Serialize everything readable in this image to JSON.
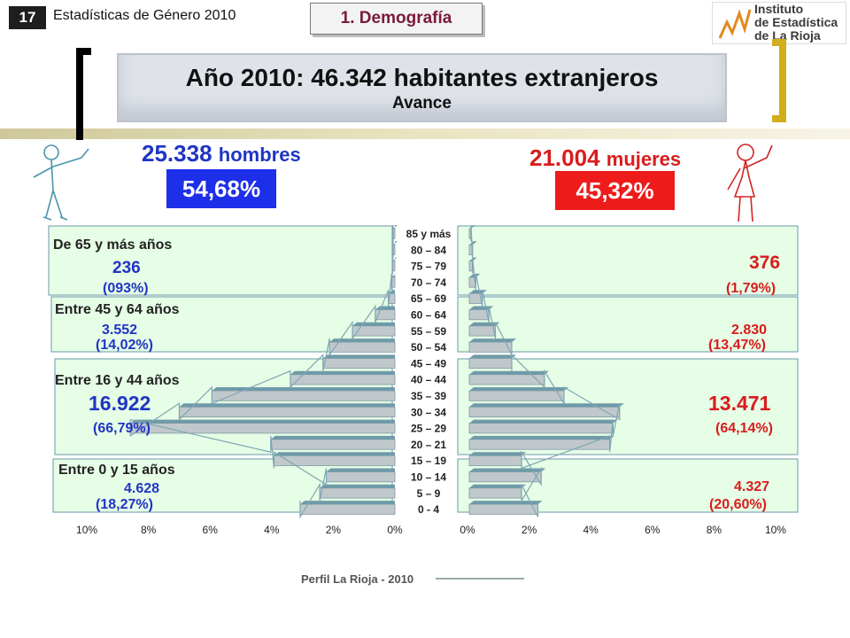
{
  "header": {
    "slide_number": "17",
    "slide_heading": "Estadísticas de Género 2010",
    "section": "1. Demografía",
    "logo_lines": [
      "Instituto",
      "de Estadística",
      "de La Rioja"
    ]
  },
  "title": {
    "main": "Año 2010: 46.342 habitantes extranjeros",
    "sub": "Avance"
  },
  "men": {
    "count": "25.338",
    "unit": "hombres",
    "pct": "54,68%"
  },
  "women": {
    "count": "21.004",
    "unit": "mujeres",
    "pct": "45,32%"
  },
  "groups": [
    {
      "label": "De 65 y más años",
      "men_value": "236",
      "men_pct": "(093%)",
      "women_value": "376",
      "women_pct": "(1,79%)"
    },
    {
      "label": "Entre 45 y 64 años",
      "men_value": "3.552",
      "men_pct": "(14,02%)",
      "women_value": "2.830",
      "women_pct": "(13,47%)"
    },
    {
      "label": "Entre 16 y 44 años",
      "men_value": "16.922",
      "men_pct": "(66,79%)",
      "women_value": "13.471",
      "women_pct": "(64,14%)"
    },
    {
      "label": "Entre 0 y 15 años",
      "men_value": "4.628",
      "men_pct": "(18,27%)",
      "women_value": "4.327",
      "women_pct": "(20,60%)"
    }
  ],
  "footer": {
    "text": "Perfil La Rioja - 2010"
  },
  "colors": {
    "men": "#1f35c4",
    "women": "#d91c1c",
    "bar": "#c0c8cc",
    "bar_side": "#6f9aa8",
    "group_bg": "#e6fde6"
  },
  "chart_data": {
    "type": "bar",
    "subtype": "population-pyramid",
    "categories": [
      "0 - 4",
      "5 – 9",
      "10 – 14",
      "15 – 19",
      "20 – 21",
      "25 – 29",
      "30 – 34",
      "35 – 39",
      "40 – 44",
      "45 – 49",
      "50 – 54",
      "55 – 59",
      "60 – 64",
      "65 – 69",
      "70 – 74",
      "75 – 79",
      "80 – 84",
      "85 y más"
    ],
    "series": [
      {
        "name": "hombres",
        "values": [
          2.9,
          2.3,
          2.1,
          3.7,
          3.8,
          8.1,
          6.6,
          5.6,
          3.2,
          2.2,
          2.0,
          1.3,
          0.6,
          0.2,
          0.1,
          0.07,
          0.04,
          0.03
        ]
      },
      {
        "name": "mujeres",
        "values": [
          2.1,
          1.6,
          2.2,
          1.6,
          4.3,
          4.4,
          4.6,
          2.9,
          2.3,
          1.3,
          1.3,
          0.8,
          0.6,
          0.4,
          0.2,
          0.1,
          0.1,
          0.05
        ]
      }
    ],
    "xticks_left": [
      "10%",
      "8%",
      "6%",
      "4%",
      "2%",
      "0%"
    ],
    "xticks_right": [
      "0%",
      "2%",
      "4%",
      "6%",
      "8%",
      "10%"
    ],
    "xlim": [
      0,
      10
    ],
    "grid": false
  }
}
